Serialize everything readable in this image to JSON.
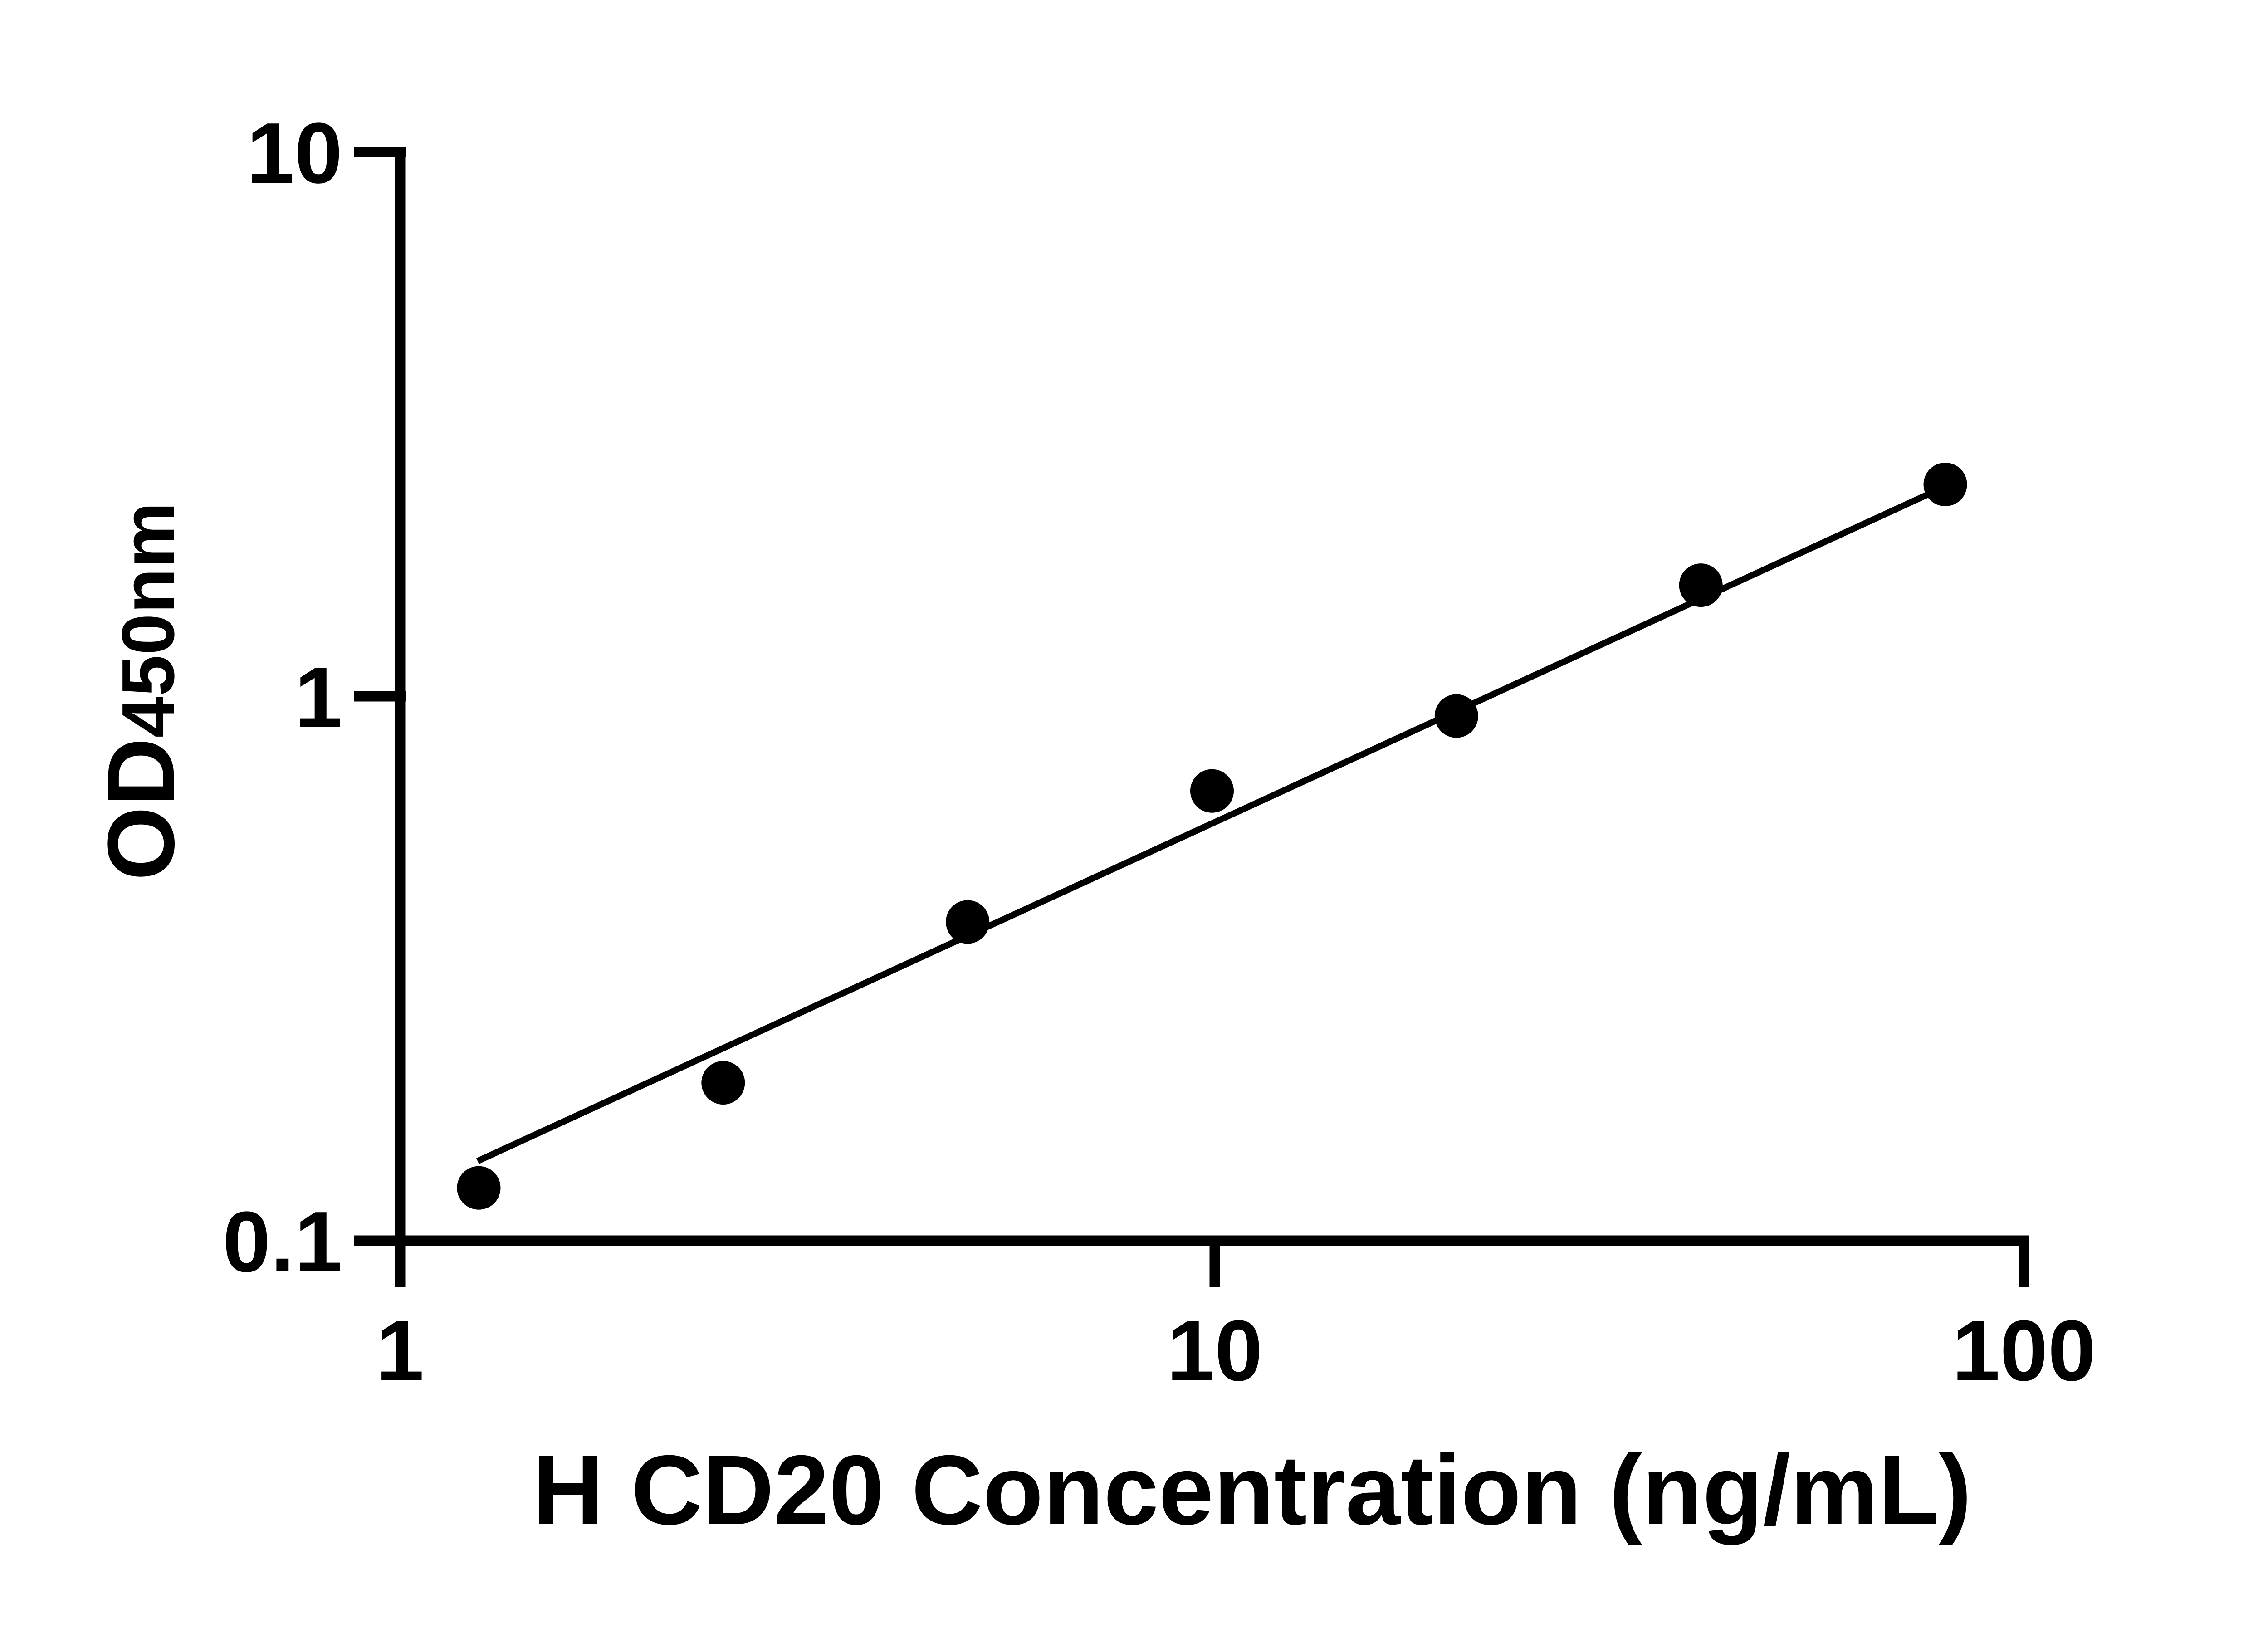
{
  "chart_data": {
    "type": "scatter",
    "title": "",
    "xlabel": "H CD20 Concentration (ng/mL)",
    "ylabel": "OD450nm",
    "ylabel_main": "OD",
    "ylabel_sub": "450nm",
    "xscale": "log",
    "yscale": "log",
    "xlim": [
      1,
      100
    ],
    "ylim": [
      0.1,
      10
    ],
    "grid": "off",
    "legend": "none",
    "marker_color": "#000000",
    "line_color": "#000000",
    "x_ticks": [
      {
        "value": 1,
        "label": "1"
      },
      {
        "value": 10,
        "label": "10"
      },
      {
        "value": 100,
        "label": "100"
      }
    ],
    "y_ticks": [
      {
        "value": 10,
        "label": "10"
      },
      {
        "value": 1,
        "label": "1"
      },
      {
        "value": 0.1,
        "label": "0.1"
      }
    ],
    "points": [
      {
        "x": 1.25,
        "y": 0.125
      },
      {
        "x": 2.5,
        "y": 0.195
      },
      {
        "x": 5,
        "y": 0.385
      },
      {
        "x": 10,
        "y": 0.67
      },
      {
        "x": 20,
        "y": 0.92
      },
      {
        "x": 40,
        "y": 1.6
      },
      {
        "x": 80,
        "y": 2.45
      }
    ],
    "trendline": {
      "x1": 1.246,
      "y1": 0.14,
      "x2": 80.9,
      "y2": 2.448
    }
  }
}
